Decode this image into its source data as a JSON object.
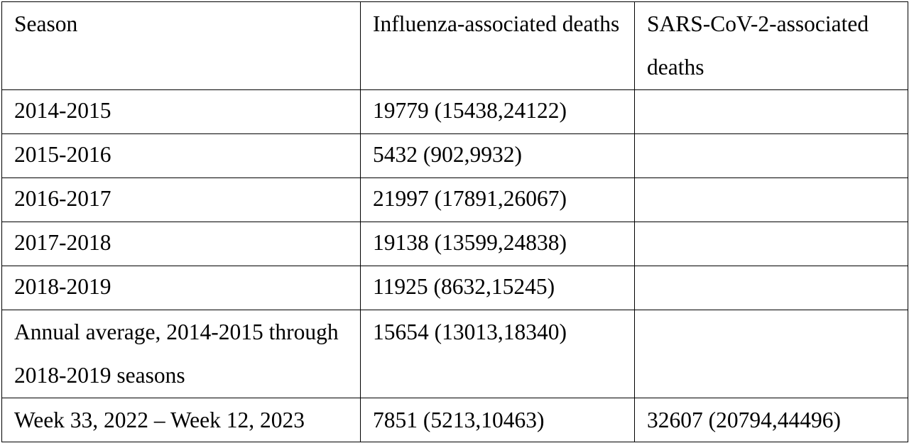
{
  "table": {
    "headers": [
      "Season",
      "Influenza-associated deaths",
      "SARS-CoV-2-associated deaths"
    ],
    "rows": [
      [
        "2014-2015",
        "19779 (15438,24122)",
        ""
      ],
      [
        "2015-2016",
        "5432 (902,9932)",
        ""
      ],
      [
        "2016-2017",
        "21997 (17891,26067)",
        ""
      ],
      [
        "2017-2018",
        "19138 (13599,24838)",
        ""
      ],
      [
        "2018-2019",
        "11925 (8632,15245)",
        ""
      ],
      [
        "Annual average, 2014-2015 through 2018-2019 seasons",
        "15654 (13013,18340)",
        ""
      ],
      [
        "Week 33, 2022 – Week 12, 2023",
        "7851 (5213,10463)",
        "32607 (20794,44496)"
      ]
    ]
  }
}
